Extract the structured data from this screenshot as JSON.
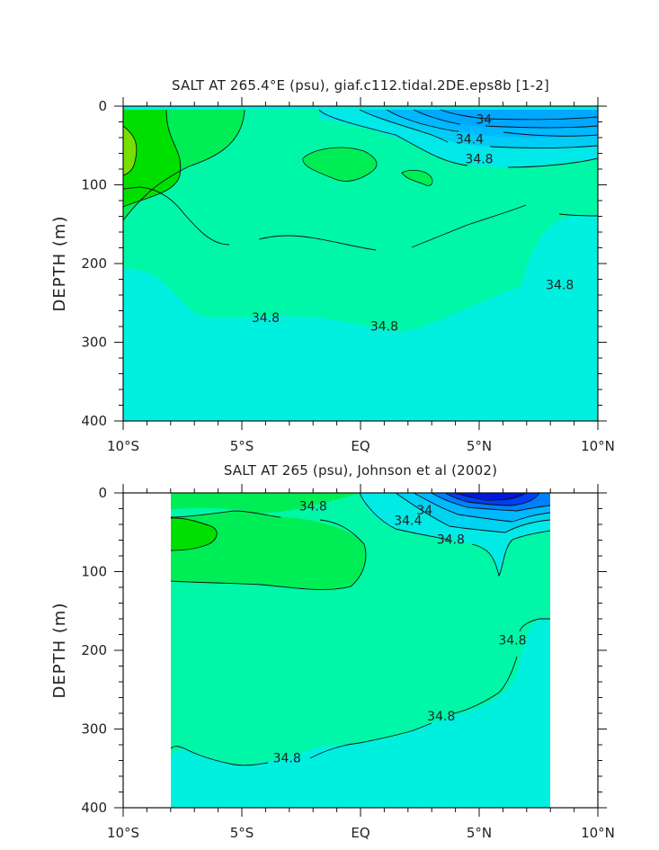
{
  "chart_data": [
    {
      "type": "contour",
      "title": "SALT AT 265.4°E (psu), giaf.c112.tidal.2DE.eps8b [1-2]",
      "xlabel": "",
      "ylabel": "DEPTH (m)",
      "x_ticks": [
        -10,
        -5,
        0,
        5,
        10
      ],
      "x_tick_labels": [
        "10°S",
        "5°S",
        "EQ",
        "5°N",
        "10°N"
      ],
      "y_ticks": [
        0,
        100,
        200,
        300,
        400
      ],
      "y_tick_labels": [
        "0",
        "100",
        "200",
        "300",
        "400"
      ],
      "xlim": [
        -10,
        10
      ],
      "ylim": [
        400,
        0
      ],
      "contour_labels": [
        {
          "text": "34",
          "x": 5.2,
          "y": 20
        },
        {
          "text": "34.4",
          "x": 4.6,
          "y": 45
        },
        {
          "text": "34.8",
          "x": 5.0,
          "y": 70
        },
        {
          "text": "34.8",
          "x": -4.0,
          "y": 272
        },
        {
          "text": "34.8",
          "x": 1.0,
          "y": 283
        },
        {
          "text": "34.8",
          "x": 8.4,
          "y": 230
        }
      ]
    },
    {
      "type": "contour",
      "title": "SALT AT 265 (psu), Johnson et al (2002)",
      "xlabel": "",
      "ylabel": "DEPTH (m)",
      "x_ticks": [
        -10,
        -5,
        0,
        5,
        10
      ],
      "x_tick_labels": [
        "10°S",
        "5°S",
        "EQ",
        "5°N",
        "10°N"
      ],
      "y_ticks": [
        0,
        100,
        200,
        300,
        400
      ],
      "y_tick_labels": [
        "0",
        "100",
        "200",
        "300",
        "400"
      ],
      "xlim": [
        -10,
        10
      ],
      "ylim": [
        400,
        0
      ],
      "data_xrange": [
        -8,
        8
      ],
      "contour_labels": [
        {
          "text": "34.8",
          "x": -2.0,
          "y": 20
        },
        {
          "text": "34",
          "x": 2.7,
          "y": 25
        },
        {
          "text": "34.4",
          "x": 2.0,
          "y": 38
        },
        {
          "text": "34.8",
          "x": 3.8,
          "y": 62
        },
        {
          "text": "34.8",
          "x": -3.1,
          "y": 340
        },
        {
          "text": "34.8",
          "x": 3.4,
          "y": 287
        },
        {
          "text": "34.8",
          "x": 6.4,
          "y": 190
        }
      ]
    }
  ]
}
